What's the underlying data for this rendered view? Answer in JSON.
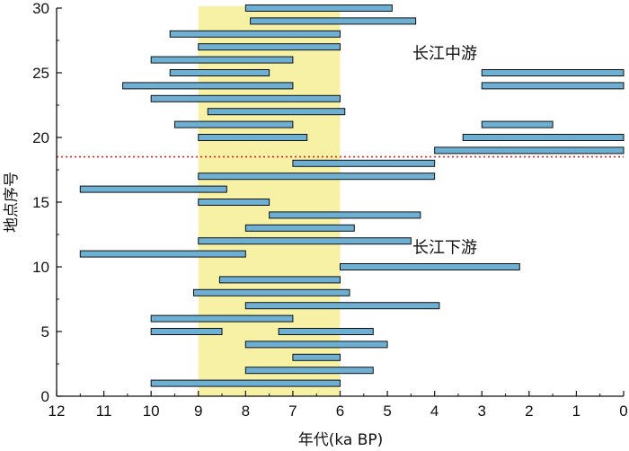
{
  "chart_data": {
    "type": "range-bar",
    "xlabel": "年代(ka BP)",
    "ylabel": "地点序号",
    "xlim": [
      12,
      0
    ],
    "ylim": [
      0,
      30
    ],
    "xticks": [
      12,
      11,
      10,
      9,
      8,
      7,
      6,
      5,
      4,
      3,
      2,
      1,
      0
    ],
    "yticks": [
      0,
      5,
      10,
      15,
      20,
      25,
      30
    ],
    "highlight_band": {
      "x": [
        9,
        6
      ],
      "color": "#f7f1a6"
    },
    "divider": {
      "y": 18.5,
      "color": "#e02020",
      "style": "dotted"
    },
    "annotations": [
      {
        "text": "长江中游",
        "x": 3.1,
        "y": 26.5
      },
      {
        "text": "长江下游",
        "x": 3.1,
        "y": 11.5
      }
    ],
    "bar_color": "#6eb0d4",
    "bars": [
      {
        "site": 1,
        "start": 10.0,
        "end": 6.0
      },
      {
        "site": 2,
        "start": 8.0,
        "end": 5.3
      },
      {
        "site": 3,
        "start": 7.0,
        "end": 6.0
      },
      {
        "site": 4,
        "start": 8.0,
        "end": 5.0
      },
      {
        "site": 5,
        "start": 10.0,
        "end": 8.5
      },
      {
        "site": 5,
        "start": 7.3,
        "end": 5.3
      },
      {
        "site": 6,
        "start": 10.0,
        "end": 7.0
      },
      {
        "site": 7,
        "start": 8.0,
        "end": 3.9
      },
      {
        "site": 8,
        "start": 9.1,
        "end": 5.8
      },
      {
        "site": 9,
        "start": 8.55,
        "end": 6.0
      },
      {
        "site": 10,
        "start": 6.0,
        "end": 2.2
      },
      {
        "site": 11,
        "start": 11.5,
        "end": 8.0
      },
      {
        "site": 12,
        "start": 9.0,
        "end": 4.5
      },
      {
        "site": 13,
        "start": 8.0,
        "end": 5.7
      },
      {
        "site": 14,
        "start": 7.5,
        "end": 4.3
      },
      {
        "site": 15,
        "start": 9.0,
        "end": 7.5
      },
      {
        "site": 16,
        "start": 11.5,
        "end": 8.4
      },
      {
        "site": 17,
        "start": 9.0,
        "end": 4.0
      },
      {
        "site": 18,
        "start": 7.0,
        "end": 4.0
      },
      {
        "site": 19,
        "start": 4.0,
        "end": 0.0
      },
      {
        "site": 20,
        "start": 9.0,
        "end": 6.7
      },
      {
        "site": 20,
        "start": 3.4,
        "end": 0.0
      },
      {
        "site": 21,
        "start": 9.5,
        "end": 7.0
      },
      {
        "site": 21,
        "start": 3.0,
        "end": 1.5
      },
      {
        "site": 22,
        "start": 8.8,
        "end": 5.9
      },
      {
        "site": 23,
        "start": 10.0,
        "end": 6.0
      },
      {
        "site": 24,
        "start": 10.6,
        "end": 7.0
      },
      {
        "site": 24,
        "start": 3.0,
        "end": 0.0
      },
      {
        "site": 25,
        "start": 9.6,
        "end": 7.5
      },
      {
        "site": 25,
        "start": 3.0,
        "end": 0.0
      },
      {
        "site": 26,
        "start": 10.0,
        "end": 7.0
      },
      {
        "site": 27,
        "start": 9.0,
        "end": 6.0
      },
      {
        "site": 28,
        "start": 9.6,
        "end": 6.0
      },
      {
        "site": 29,
        "start": 7.9,
        "end": 4.4
      },
      {
        "site": 30,
        "start": 8.0,
        "end": 4.9
      }
    ]
  }
}
